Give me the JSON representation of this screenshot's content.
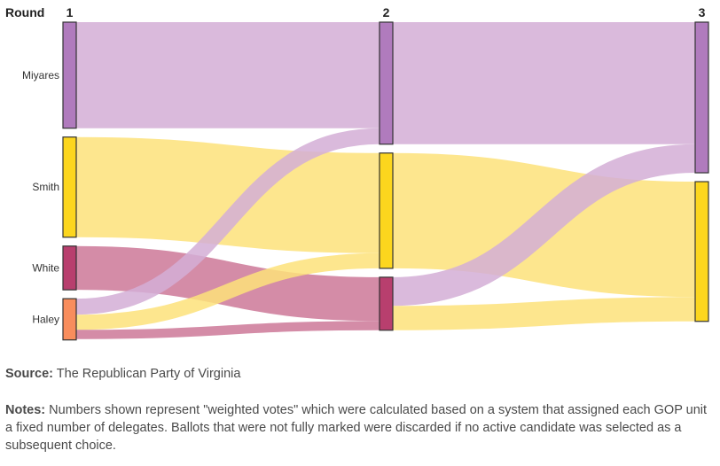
{
  "colors": {
    "Miyares": "#b07bbd",
    "Smith": "#fcd61e",
    "White": "#b83f6e",
    "Haley": "#f88d5d",
    "flow_Miyares": "#d3aed6",
    "flow_Smith": "#fde27a",
    "flow_White": "#cc7898",
    "node_stroke": "#333333"
  },
  "chart_data": {
    "type": "sankey",
    "round_title": "Round",
    "rounds": [
      "1",
      "2",
      "3"
    ],
    "nodes": [
      {
        "id": "M1",
        "name": "Miyares",
        "round": 0,
        "value": 126,
        "show_label": true
      },
      {
        "id": "S1",
        "name": "Smith",
        "round": 0,
        "value": 119,
        "show_label": true
      },
      {
        "id": "W1",
        "name": "White",
        "round": 0,
        "value": 52,
        "show_label": true
      },
      {
        "id": "H1",
        "name": "Haley",
        "round": 0,
        "value": 49,
        "show_label": true
      },
      {
        "id": "M2",
        "name": "Miyares",
        "round": 1,
        "value": 145,
        "show_label": false
      },
      {
        "id": "S2",
        "name": "Smith",
        "round": 1,
        "value": 137,
        "show_label": false
      },
      {
        "id": "W2",
        "name": "White",
        "round": 1,
        "value": 63,
        "show_label": false
      },
      {
        "id": "M3",
        "name": "Miyares",
        "round": 2,
        "value": 179,
        "show_label": false
      },
      {
        "id": "S3",
        "name": "Smith",
        "round": 2,
        "value": 166,
        "show_label": false
      }
    ],
    "links": [
      {
        "source": "M1",
        "target": "M2",
        "value": 126,
        "color_key": "Miyares"
      },
      {
        "source": "S1",
        "target": "S2",
        "value": 119,
        "color_key": "Smith"
      },
      {
        "source": "W1",
        "target": "W2",
        "value": 52,
        "color_key": "White"
      },
      {
        "source": "H1",
        "target": "M2",
        "value": 19,
        "color_key": "Miyares"
      },
      {
        "source": "H1",
        "target": "S2",
        "value": 18,
        "color_key": "Smith"
      },
      {
        "source": "H1",
        "target": "W2",
        "value": 11,
        "color_key": "White"
      },
      {
        "source": "M2",
        "target": "M3",
        "value": 145,
        "color_key": "Miyares"
      },
      {
        "source": "S2",
        "target": "S3",
        "value": 137,
        "color_key": "Smith"
      },
      {
        "source": "W2",
        "target": "M3",
        "value": 34,
        "color_key": "Miyares"
      },
      {
        "source": "W2",
        "target": "S3",
        "value": 29,
        "color_key": "Smith"
      }
    ]
  },
  "footer": {
    "source_label": "Source:",
    "source_text": " The Republican Party of Virginia",
    "notes_label": "Notes:",
    "notes_text": " Numbers shown represent \"weighted votes\" which were calculated based on a system that assigned each GOP unit a fixed number of delegates. Ballots that were not fully marked were discarded if no active candidate was selected as a subsequent choice."
  }
}
